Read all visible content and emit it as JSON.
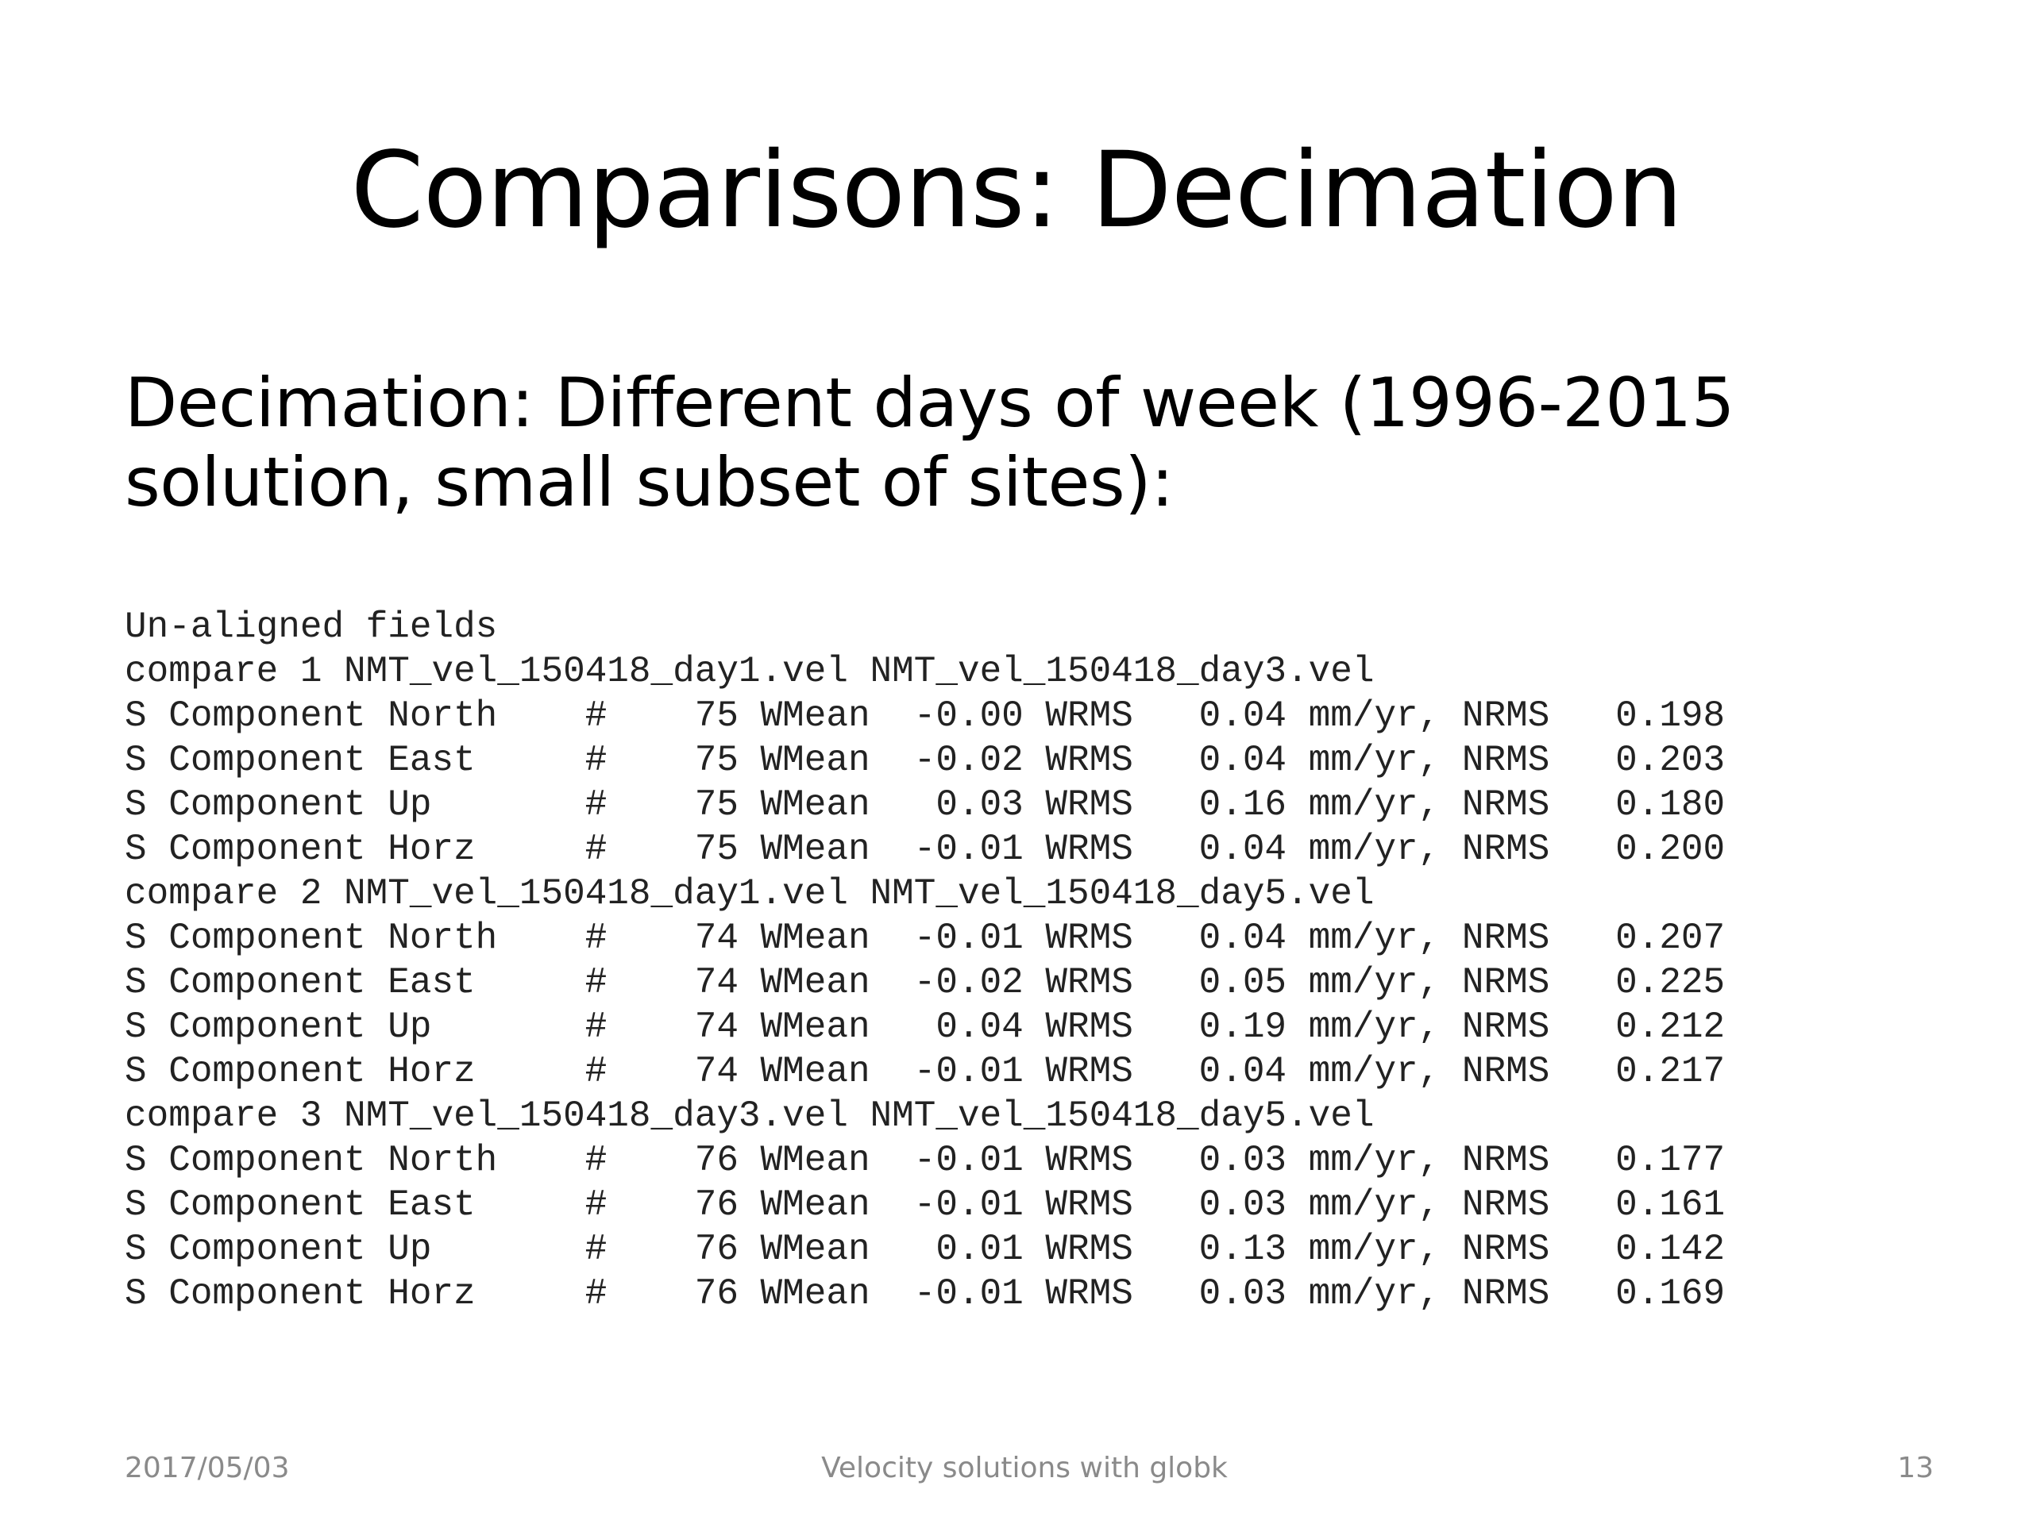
{
  "slide": {
    "title": "Comparisons: Decimation",
    "subtitle_lines": [
      "Decimation: Different days of week (1996-2015",
      "solution, small subset of sites):"
    ],
    "code_lines": [
      "Un-aligned fields",
      "compare 1 NMT_vel_150418_day1.vel NMT_vel_150418_day3.vel",
      "S Component North    #    75 WMean  -0.00 WRMS   0.04 mm/yr, NRMS   0.198",
      "S Component East     #    75 WMean  -0.02 WRMS   0.04 mm/yr, NRMS   0.203",
      "S Component Up       #    75 WMean   0.03 WRMS   0.16 mm/yr, NRMS   0.180",
      "S Component Horz     #    75 WMean  -0.01 WRMS   0.04 mm/yr, NRMS   0.200",
      "compare 2 NMT_vel_150418_day1.vel NMT_vel_150418_day5.vel",
      "S Component North    #    74 WMean  -0.01 WRMS   0.04 mm/yr, NRMS   0.207",
      "S Component East     #    74 WMean  -0.02 WRMS   0.05 mm/yr, NRMS   0.225",
      "S Component Up       #    74 WMean   0.04 WRMS   0.19 mm/yr, NRMS   0.212",
      "S Component Horz     #    74 WMean  -0.01 WRMS   0.04 mm/yr, NRMS   0.217",
      "compare 3 NMT_vel_150418_day3.vel NMT_vel_150418_day5.vel",
      "S Component North    #    76 WMean  -0.01 WRMS   0.03 mm/yr, NRMS   0.177",
      "S Component East     #    76 WMean  -0.01 WRMS   0.03 mm/yr, NRMS   0.161",
      "S Component Up       #    76 WMean   0.01 WRMS   0.13 mm/yr, NRMS   0.142",
      "S Component Horz     #    76 WMean  -0.01 WRMS   0.03 mm/yr, NRMS   0.169"
    ]
  },
  "footer": {
    "date": "2017/05/03",
    "center": "Velocity solutions with globk",
    "page_number": "13"
  }
}
